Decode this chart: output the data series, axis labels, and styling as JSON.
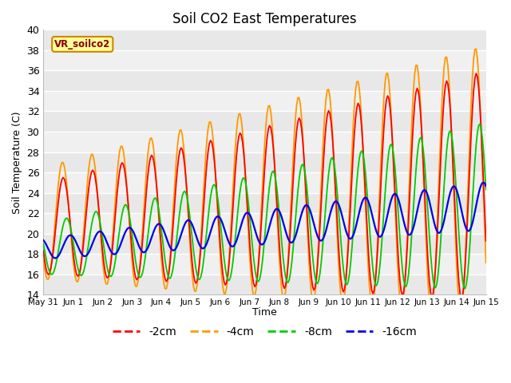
{
  "title": "Soil CO2 East Temperatures",
  "xlabel": "Time",
  "ylabel": "Soil Temperature (C)",
  "ylim": [
    14,
    40
  ],
  "yticks": [
    14,
    16,
    18,
    20,
    22,
    24,
    26,
    28,
    30,
    32,
    34,
    36,
    38,
    40
  ],
  "xtick_labels": [
    "May 31",
    "Jun 1",
    "Jun 2",
    "Jun 3",
    "Jun 4",
    "Jun 5",
    "Jun 6",
    "Jun 7",
    "Jun 8",
    "Jun 9",
    "Jun 10",
    "Jun 11",
    "Jun 12",
    "Jun 13",
    "Jun 14",
    "Jun 15"
  ],
  "colors": {
    "2cm": "#ff0000",
    "4cm": "#ff9900",
    "8cm": "#00cc00",
    "16cm": "#0000ee"
  },
  "bg_light": "#e8e8e8",
  "bg_white": "#f5f5f5",
  "label_box_text": "VR_soilco2",
  "label_box_color": "#ffff99",
  "label_box_edge": "#cc8800",
  "n_days": 15,
  "samples_per_day": 24
}
